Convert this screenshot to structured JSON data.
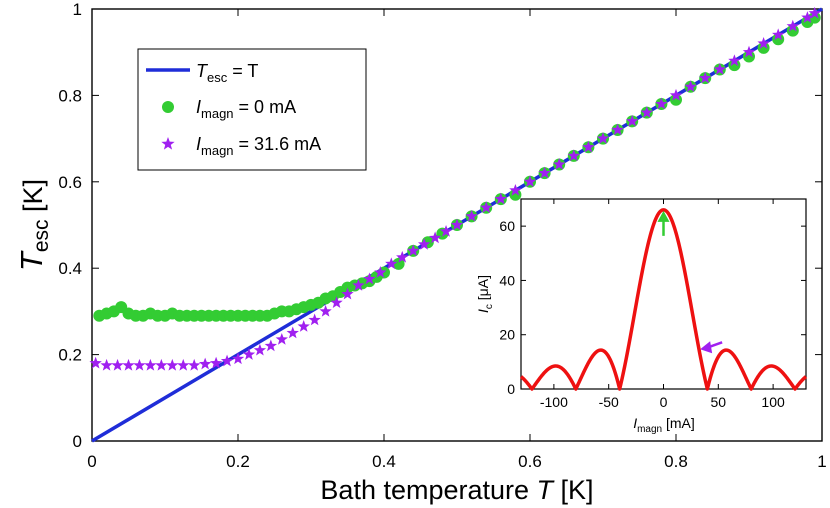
{
  "chart_data": [
    {
      "type": "scatter",
      "title": "",
      "xlabel": {
        "main": "Bath temperature ",
        "var": "T",
        "unit": " [K]"
      },
      "ylabel": {
        "var": "T",
        "sub": "esc",
        "unit": " [K]"
      },
      "xlim": [
        0,
        1
      ],
      "ylim": [
        0,
        1
      ],
      "xticks": [
        "0",
        "0.2",
        "0.4",
        "0.6",
        "0.8",
        "1"
      ],
      "yticks": [
        "0",
        "0.2",
        "0.4",
        "0.6",
        "0.8",
        "1"
      ],
      "legend_position": "top-left",
      "series": [
        {
          "name": "T_esc = T",
          "legend": {
            "var": "T",
            "sub": "esc",
            "rest": " = T"
          },
          "kind": "line",
          "color": "#1f2dd8",
          "x": [
            0,
            1
          ],
          "y": [
            0,
            1
          ]
        },
        {
          "name": "I_magn = 0 mA",
          "legend": {
            "var": "I",
            "sub": "magn",
            "rest": " = 0 mA"
          },
          "kind": "dots",
          "color": "#33cc33",
          "x": [
            0.01,
            0.02,
            0.03,
            0.04,
            0.05,
            0.06,
            0.07,
            0.08,
            0.09,
            0.1,
            0.11,
            0.12,
            0.13,
            0.14,
            0.15,
            0.16,
            0.17,
            0.18,
            0.19,
            0.2,
            0.21,
            0.22,
            0.23,
            0.24,
            0.25,
            0.26,
            0.27,
            0.28,
            0.29,
            0.3,
            0.31,
            0.32,
            0.33,
            0.34,
            0.35,
            0.36,
            0.37,
            0.38,
            0.39,
            0.4,
            0.42,
            0.44,
            0.46,
            0.48,
            0.5,
            0.52,
            0.54,
            0.56,
            0.58,
            0.6,
            0.62,
            0.64,
            0.66,
            0.68,
            0.7,
            0.72,
            0.74,
            0.76,
            0.78,
            0.8,
            0.82,
            0.84,
            0.86,
            0.88,
            0.9,
            0.92,
            0.94,
            0.96,
            0.98,
            0.99
          ],
          "y": [
            0.29,
            0.295,
            0.3,
            0.31,
            0.295,
            0.29,
            0.29,
            0.295,
            0.29,
            0.29,
            0.295,
            0.29,
            0.29,
            0.29,
            0.29,
            0.29,
            0.29,
            0.29,
            0.29,
            0.29,
            0.29,
            0.29,
            0.29,
            0.29,
            0.295,
            0.3,
            0.3,
            0.305,
            0.31,
            0.315,
            0.32,
            0.33,
            0.335,
            0.345,
            0.355,
            0.36,
            0.365,
            0.37,
            0.38,
            0.39,
            0.41,
            0.44,
            0.46,
            0.48,
            0.5,
            0.52,
            0.54,
            0.56,
            0.57,
            0.6,
            0.62,
            0.64,
            0.66,
            0.68,
            0.7,
            0.72,
            0.74,
            0.76,
            0.78,
            0.79,
            0.82,
            0.84,
            0.86,
            0.87,
            0.89,
            0.91,
            0.93,
            0.95,
            0.97,
            0.98
          ]
        },
        {
          "name": "I_magn = 31.6 mA",
          "legend": {
            "var": "I",
            "sub": "magn",
            "rest": " = 31.6 mA"
          },
          "kind": "stars",
          "color": "#a020f0",
          "x": [
            0.005,
            0.02,
            0.035,
            0.05,
            0.065,
            0.08,
            0.095,
            0.11,
            0.125,
            0.14,
            0.155,
            0.17,
            0.185,
            0.2,
            0.215,
            0.23,
            0.245,
            0.26,
            0.275,
            0.29,
            0.305,
            0.32,
            0.335,
            0.35,
            0.365,
            0.38,
            0.395,
            0.41,
            0.425,
            0.44,
            0.455,
            0.47,
            0.485,
            0.5,
            0.52,
            0.54,
            0.56,
            0.58,
            0.6,
            0.62,
            0.64,
            0.66,
            0.68,
            0.7,
            0.72,
            0.74,
            0.76,
            0.78,
            0.8,
            0.82,
            0.84,
            0.86,
            0.88,
            0.9,
            0.92,
            0.94,
            0.96,
            0.98,
            0.99
          ],
          "y": [
            0.18,
            0.175,
            0.175,
            0.175,
            0.175,
            0.175,
            0.175,
            0.175,
            0.175,
            0.175,
            0.178,
            0.18,
            0.185,
            0.19,
            0.2,
            0.21,
            0.22,
            0.235,
            0.25,
            0.265,
            0.28,
            0.3,
            0.32,
            0.34,
            0.36,
            0.375,
            0.39,
            0.41,
            0.425,
            0.44,
            0.455,
            0.47,
            0.485,
            0.5,
            0.52,
            0.54,
            0.56,
            0.58,
            0.6,
            0.62,
            0.64,
            0.66,
            0.68,
            0.7,
            0.72,
            0.74,
            0.76,
            0.78,
            0.8,
            0.82,
            0.84,
            0.86,
            0.88,
            0.9,
            0.92,
            0.94,
            0.96,
            0.98,
            0.99
          ]
        }
      ]
    },
    {
      "type": "line",
      "title": "",
      "inset": true,
      "xlabel": {
        "var": "I",
        "sub": "magn",
        "unit": " [mA]"
      },
      "ylabel": {
        "var": "I",
        "sub": "c",
        "unit": " [μA]"
      },
      "xlim": [
        -130,
        130
      ],
      "ylim": [
        0,
        70
      ],
      "xticks": [
        "-100",
        "-50",
        "0",
        "50",
        "100"
      ],
      "yticks": [
        "0",
        "20",
        "40",
        "60"
      ],
      "series": [
        {
          "name": "I_c",
          "color": "#ee1111"
        }
      ],
      "pattern": {
        "peak": 66,
        "node_spacing": 40
      },
      "markers": [
        {
          "name": "green-arrow",
          "color": "#33cc33",
          "x": 0,
          "y": 66
        },
        {
          "name": "purple-arrow",
          "color": "#a020f0",
          "x": 31.6,
          "y": 15
        }
      ]
    }
  ]
}
